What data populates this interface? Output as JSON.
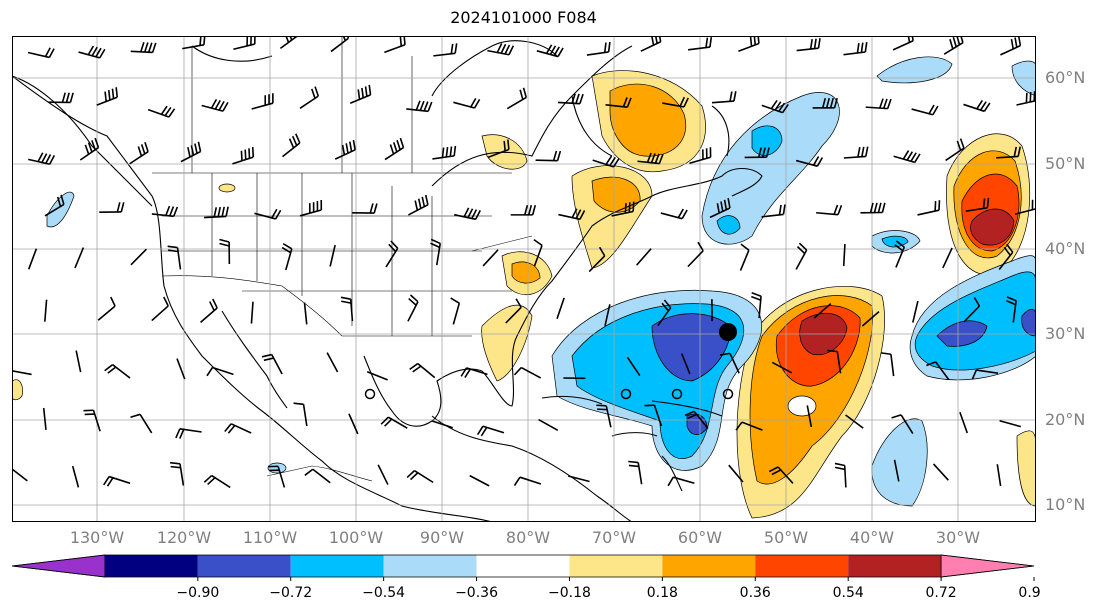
{
  "title": "2024101000 F084",
  "map": {
    "lon_labels": [
      "130°W",
      "120°W",
      "110°W",
      "100°W",
      "90°W",
      "80°W",
      "70°W",
      "60°W",
      "50°W",
      "40°W",
      "30°W"
    ],
    "lat_labels": [
      "60°N",
      "50°N",
      "40°N",
      "30°N",
      "20°N",
      "10°N"
    ],
    "label_color": "#808080",
    "grid_color": "#a6a6a6"
  },
  "colorbar": {
    "tick_labels": [
      "−0.90",
      "−0.72",
      "−0.54",
      "−0.36",
      "−0.18",
      "0.18",
      "0.36",
      "0.54",
      "0.72",
      "0.90"
    ],
    "colors": [
      "#9932cc",
      "#000080",
      "#3a50c8",
      "#00bfff",
      "#aadcfa",
      "#ffffff",
      "#fde68a",
      "#ffa500",
      "#ff4500",
      "#b22222",
      "#ff80b0"
    ],
    "extend": "both"
  },
  "markers": {
    "tropical_cyclone_filled": "filled-circle",
    "open_circles": "open-circle"
  }
}
